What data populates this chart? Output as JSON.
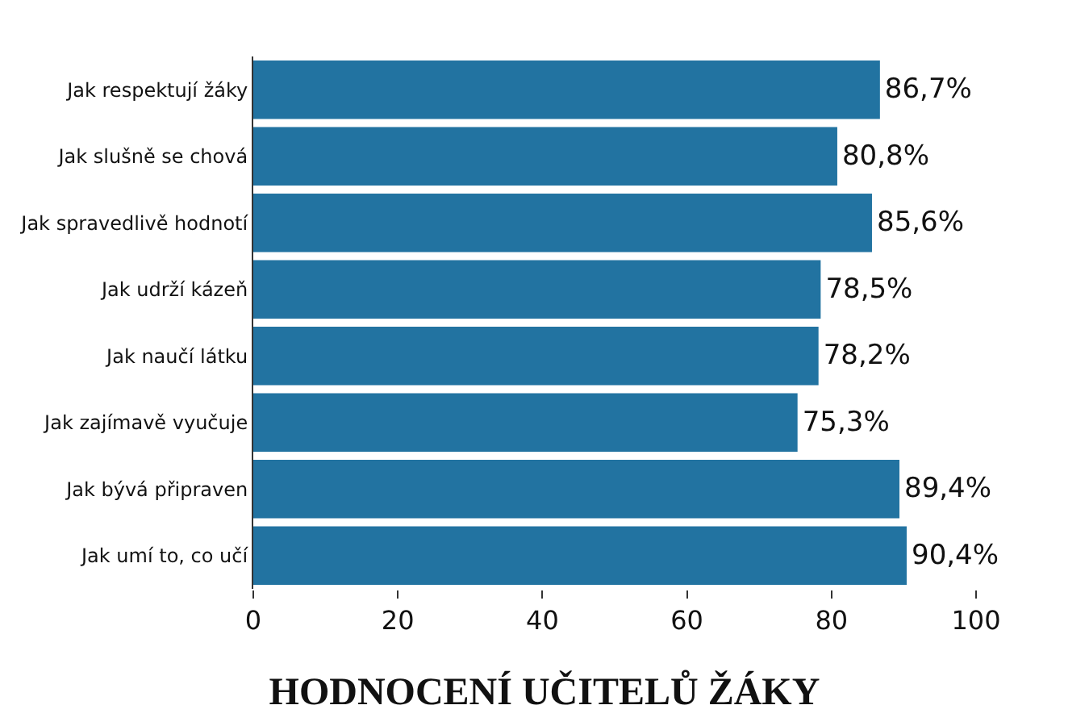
{
  "chart_data": {
    "type": "bar",
    "orientation": "horizontal",
    "title": "HODNOCENÍ UČITELŮ ŽÁKY",
    "categories": [
      "Jak respektují žáky",
      "Jak slušně se chová",
      "Jak spravedlivě hodnotí",
      "Jak udrží kázeň",
      "Jak naučí látku",
      "Jak zajímavě vyučuje",
      "Jak bývá připraven",
      "Jak umí to, co učí"
    ],
    "values": [
      86.7,
      80.8,
      85.6,
      78.5,
      78.2,
      75.3,
      89.4,
      90.4
    ],
    "value_labels": [
      "86,7%",
      "80,8%",
      "85,6%",
      "78,5%",
      "78,2%",
      "75,3%",
      "89,4%",
      "90,4%"
    ],
    "color": "#2273a1",
    "xlim": [
      0,
      100
    ],
    "xticks": [
      0,
      20,
      40,
      60,
      80,
      100
    ],
    "grid": false
  }
}
